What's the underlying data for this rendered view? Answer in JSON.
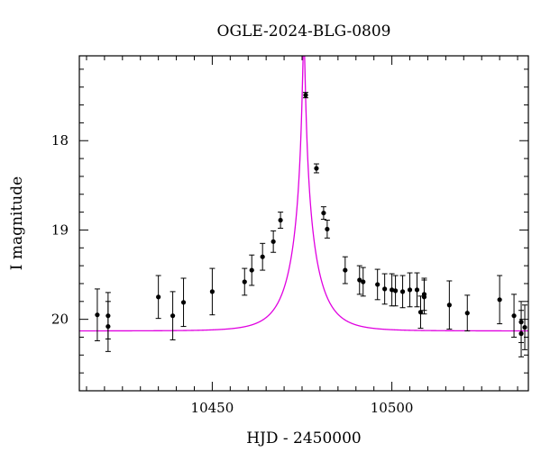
{
  "chart_data": {
    "type": "scatter",
    "title": "OGLE-2024-BLG-0809",
    "xlabel": "HJD - 2450000",
    "ylabel": "I magnitude",
    "xlim": [
      10413,
      10538
    ],
    "ylim": [
      20.8,
      17.05
    ],
    "y_inverted": true,
    "grid": false,
    "x_ticks": [
      10450,
      10500
    ],
    "y_ticks": [
      18,
      19,
      20
    ],
    "model_color": "#e000e0",
    "point_color": "#000000",
    "model": {
      "name": "",
      "baseline_mag": 20.13,
      "peak_time": 10475.5,
      "description_curve_params": {
        "u0": 0.04,
        "tE": 8.0,
        "fs": 0.8
      }
    },
    "series": [
      {
        "name": "",
        "points": [
          {
            "x": 10418.0,
            "y": 19.95,
            "err": 0.29
          },
          {
            "x": 10421.0,
            "y": 19.96,
            "err": 0.26
          },
          {
            "x": 10421.0,
            "y": 20.08,
            "err": 0.28
          },
          {
            "x": 10435.0,
            "y": 19.75,
            "err": 0.24
          },
          {
            "x": 10439.0,
            "y": 19.96,
            "err": 0.27
          },
          {
            "x": 10442.0,
            "y": 19.81,
            "err": 0.27
          },
          {
            "x": 10450.0,
            "y": 19.69,
            "err": 0.26
          },
          {
            "x": 10459.0,
            "y": 19.58,
            "err": 0.15
          },
          {
            "x": 10461.0,
            "y": 19.45,
            "err": 0.17
          },
          {
            "x": 10464.0,
            "y": 19.3,
            "err": 0.15
          },
          {
            "x": 10467.0,
            "y": 19.13,
            "err": 0.12
          },
          {
            "x": 10469.0,
            "y": 18.89,
            "err": 0.09
          },
          {
            "x": 10476.0,
            "y": 17.49,
            "err": 0.03
          },
          {
            "x": 10479.0,
            "y": 18.31,
            "err": 0.05
          },
          {
            "x": 10481.0,
            "y": 18.81,
            "err": 0.07
          },
          {
            "x": 10482.0,
            "y": 18.99,
            "err": 0.1
          },
          {
            "x": 10487.0,
            "y": 19.45,
            "err": 0.15
          },
          {
            "x": 10491.0,
            "y": 19.56,
            "err": 0.16
          },
          {
            "x": 10492.0,
            "y": 19.58,
            "err": 0.16
          },
          {
            "x": 10496.0,
            "y": 19.61,
            "err": 0.17
          },
          {
            "x": 10498.0,
            "y": 19.66,
            "err": 0.17
          },
          {
            "x": 10500.0,
            "y": 19.67,
            "err": 0.18
          },
          {
            "x": 10501.0,
            "y": 19.68,
            "err": 0.17
          },
          {
            "x": 10503.0,
            "y": 19.69,
            "err": 0.18
          },
          {
            "x": 10505.0,
            "y": 19.67,
            "err": 0.19
          },
          {
            "x": 10507.0,
            "y": 19.67,
            "err": 0.19
          },
          {
            "x": 10508.0,
            "y": 19.92,
            "err": 0.18
          },
          {
            "x": 10509.0,
            "y": 19.72,
            "err": 0.18
          },
          {
            "x": 10509.0,
            "y": 19.75,
            "err": 0.19
          },
          {
            "x": 10516.0,
            "y": 19.84,
            "err": 0.27
          },
          {
            "x": 10521.0,
            "y": 19.93,
            "err": 0.2
          },
          {
            "x": 10530.0,
            "y": 19.78,
            "err": 0.27
          },
          {
            "x": 10534.0,
            "y": 19.96,
            "err": 0.24
          },
          {
            "x": 10536.0,
            "y": 20.03,
            "err": 0.23
          },
          {
            "x": 10536.0,
            "y": 20.16,
            "err": 0.26
          },
          {
            "x": 10537.0,
            "y": 20.09,
            "err": 0.25
          }
        ]
      }
    ]
  }
}
